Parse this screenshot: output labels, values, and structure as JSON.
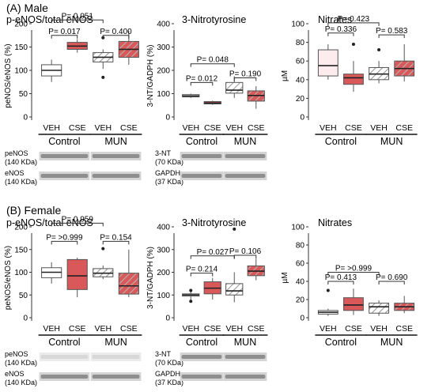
{
  "colors": {
    "red_fill": "#d9585a",
    "pale_fill": "#fdecee",
    "white_fill": "#ffffff",
    "hatch_line": "#9a9a9a",
    "axis": "#333333"
  },
  "chart_data": [
    {
      "panel_title": "(A) Male",
      "title": "p-eNOS/total eNOS",
      "type": "box",
      "ylabel": "peNOS/eNOS (%)",
      "ylim": [
        0,
        200
      ],
      "yticks": [
        0,
        50,
        100,
        150,
        200
      ],
      "categories": [
        "VEH",
        "CSE",
        "VEH",
        "CSE"
      ],
      "groups": [
        "Control",
        "MUN"
      ],
      "boxes": [
        {
          "style": "white",
          "whisker_low": 75,
          "q1": 88,
          "median": 100,
          "q3": 112,
          "whisker_high": 123,
          "outliers": []
        },
        {
          "style": "red",
          "whisker_low": 138,
          "q1": 145,
          "median": 152,
          "q3": 160,
          "whisker_high": 167,
          "outliers": []
        },
        {
          "style": "hatched",
          "whisker_low": 103,
          "q1": 118,
          "median": 128,
          "q3": 138,
          "whisker_high": 145,
          "outliers": [
            170,
            85
          ]
        },
        {
          "style": "hatched_red",
          "whisker_low": 112,
          "q1": 128,
          "median": 145,
          "q3": 162,
          "whisker_high": 185,
          "outliers": []
        }
      ],
      "pvalues": [
        {
          "text": "P= 0.051",
          "from": 0,
          "to": 2,
          "y": 208
        },
        {
          "text": "P= 0.017",
          "from": 0,
          "to": 1,
          "y": 175
        },
        {
          "text": "P= 0.400",
          "from": 2,
          "to": 3,
          "y": 175
        }
      ],
      "blots": [
        {
          "label": "peNOS",
          "sublabel": "(140 KDa)"
        },
        {
          "label": "eNOS",
          "sublabel": "(140 KDa)"
        }
      ]
    },
    {
      "title": "3-Nitrotyrosine",
      "type": "box",
      "ylabel": "3-NT/GADPH (%)",
      "ylim": [
        0,
        400
      ],
      "yticks": [
        0,
        100,
        200,
        300,
        400
      ],
      "categories": [
        "VEH",
        "CSE",
        "VEH",
        "CSE"
      ],
      "groups": [
        "Control",
        "MUN"
      ],
      "boxes": [
        {
          "style": "white",
          "whisker_low": 82,
          "q1": 86,
          "median": 90,
          "q3": 96,
          "whisker_high": 100,
          "outliers": []
        },
        {
          "style": "red",
          "whisker_low": 52,
          "q1": 56,
          "median": 60,
          "q3": 66,
          "whisker_high": 70,
          "outliers": []
        },
        {
          "style": "hatched",
          "whisker_low": 82,
          "q1": 102,
          "median": 115,
          "q3": 148,
          "whisker_high": 175,
          "outliers": []
        },
        {
          "style": "hatched_red",
          "whisker_low": 35,
          "q1": 68,
          "median": 92,
          "q3": 112,
          "whisker_high": 132,
          "outliers": []
        }
      ],
      "pvalues": [
        {
          "text": "P= 0.048",
          "from": 0,
          "to": 2,
          "y": 228
        },
        {
          "text": "P= 0.012",
          "from": 0,
          "to": 1,
          "y": 148
        },
        {
          "text": "P= 0.190",
          "from": 2,
          "to": 3,
          "y": 168
        }
      ],
      "blots": [
        {
          "label": "3-NT",
          "sublabel": "(70 KDa)"
        },
        {
          "label": "GAPDH",
          "sublabel": "(37 KDa)"
        }
      ]
    },
    {
      "title": "Nitrates",
      "type": "box",
      "ylabel": "µM",
      "ylim": [
        0,
        100
      ],
      "yticks": [
        0,
        20,
        40,
        60,
        80,
        100
      ],
      "categories": [
        "VEH",
        "CSE",
        "VEH",
        "CSE"
      ],
      "groups": [
        "Control",
        "MUN"
      ],
      "boxes": [
        {
          "style": "pale",
          "whisker_low": 40,
          "q1": 44,
          "median": 55,
          "q3": 72,
          "whisker_high": 78,
          "outliers": []
        },
        {
          "style": "red",
          "whisker_low": 27,
          "q1": 35,
          "median": 42,
          "q3": 46,
          "whisker_high": 60,
          "outliers": [
            78
          ]
        },
        {
          "style": "hatched",
          "whisker_low": 36,
          "q1": 40,
          "median": 46,
          "q3": 53,
          "whisker_high": 60,
          "outliers": [
            72
          ]
        },
        {
          "style": "hatched_red",
          "whisker_low": 38,
          "q1": 44,
          "median": 52,
          "q3": 60,
          "whisker_high": 78,
          "outliers": []
        }
      ],
      "pvalues": [
        {
          "text": "P= 0.423",
          "from": 0,
          "to": 2,
          "y": 101
        },
        {
          "text": "P= 0.336",
          "from": 0,
          "to": 1,
          "y": 90
        },
        {
          "text": "P= 0.583",
          "from": 2,
          "to": 3,
          "y": 88
        }
      ],
      "blots": []
    },
    {
      "panel_title": "(B) Female",
      "title": "p-eNOS/total eNOS",
      "type": "box",
      "ylabel": "peNOS/eNOS (%)",
      "ylim": [
        0,
        200
      ],
      "yticks": [
        0,
        50,
        100,
        150,
        200
      ],
      "categories": [
        "VEH",
        "CSE",
        "VEH",
        "CSE"
      ],
      "groups": [
        "Control",
        "MUN"
      ],
      "boxes": [
        {
          "style": "white",
          "whisker_low": 75,
          "q1": 88,
          "median": 100,
          "q3": 110,
          "whisker_high": 122,
          "outliers": []
        },
        {
          "style": "red",
          "whisker_low": 45,
          "q1": 62,
          "median": 92,
          "q3": 128,
          "whisker_high": 132,
          "outliers": []
        },
        {
          "style": "hatched",
          "whisker_low": 85,
          "q1": 90,
          "median": 98,
          "q3": 108,
          "whisker_high": 115,
          "outliers": [
            152
          ]
        },
        {
          "style": "hatched_red",
          "whisker_low": 45,
          "q1": 52,
          "median": 70,
          "q3": 98,
          "whisker_high": 150,
          "outliers": []
        }
      ],
      "pvalues": [
        {
          "text": "P= 0.959",
          "from": 0,
          "to": 2,
          "y": 208
        },
        {
          "text": "P= >0.999",
          "from": 0,
          "to": 1,
          "y": 168
        },
        {
          "text": "P= 0.154",
          "from": 2,
          "to": 3,
          "y": 168
        }
      ],
      "blots": [
        {
          "label": "peNOS",
          "sublabel": "(140 KDa)"
        },
        {
          "label": "eNOS",
          "sublabel": "(140 KDa)"
        }
      ]
    },
    {
      "title": "3-Nitrotyrosine",
      "type": "box",
      "ylabel": "3-NT/GADPH (%)",
      "ylim": [
        0,
        400
      ],
      "yticks": [
        0,
        100,
        200,
        300,
        400
      ],
      "categories": [
        "VEH",
        "CSE",
        "VEH",
        "CSE"
      ],
      "groups": [
        "Control",
        "MUN"
      ],
      "boxes": [
        {
          "style": "white",
          "whisker_low": 75,
          "q1": 95,
          "median": 100,
          "q3": 105,
          "whisker_high": 118,
          "outliers": [
            120,
            72
          ]
        },
        {
          "style": "red",
          "whisker_low": 80,
          "q1": 105,
          "median": 130,
          "q3": 158,
          "whisker_high": 175,
          "outliers": []
        },
        {
          "style": "hatched",
          "whisker_low": 68,
          "q1": 100,
          "median": 118,
          "q3": 150,
          "whisker_high": 200,
          "outliers": [
            390
          ]
        },
        {
          "style": "hatched_red",
          "whisker_low": 165,
          "q1": 185,
          "median": 205,
          "q3": 228,
          "whisker_high": 260,
          "outliers": []
        }
      ],
      "pvalues": [
        {
          "text": "P= 0.027",
          "from": 0,
          "to": 2,
          "y": 272
        },
        {
          "text": "P= 0.214",
          "from": 0,
          "to": 1,
          "y": 196
        },
        {
          "text": "P= 0.106",
          "from": 2,
          "to": 3,
          "y": 275
        }
      ],
      "blots": [
        {
          "label": "3-NT",
          "sublabel": "(70 KDa)"
        },
        {
          "label": "GAPDH",
          "sublabel": "(37 KDa)"
        }
      ]
    },
    {
      "title": "Nitrates",
      "type": "box",
      "ylabel": "µM",
      "ylim": [
        0,
        100
      ],
      "yticks": [
        0,
        20,
        40,
        60,
        80,
        100
      ],
      "categories": [
        "VEH",
        "CSE",
        "VEH",
        "CSE"
      ],
      "groups": [
        "Control",
        "MUN"
      ],
      "boxes": [
        {
          "style": "white",
          "whisker_low": 2,
          "q1": 4,
          "median": 6,
          "q3": 8,
          "whisker_high": 10,
          "outliers": [
            30
          ]
        },
        {
          "style": "red",
          "whisker_low": 3,
          "q1": 8,
          "median": 14,
          "q3": 22,
          "whisker_high": 32,
          "outliers": []
        },
        {
          "style": "hatched",
          "whisker_low": 2,
          "q1": 5,
          "median": 12,
          "q3": 16,
          "whisker_high": 19,
          "outliers": []
        },
        {
          "style": "hatched_red",
          "whisker_low": 5,
          "q1": 8,
          "median": 12,
          "q3": 16,
          "whisker_high": 24,
          "outliers": []
        }
      ],
      "pvalues": [
        {
          "text": "P= >0.999",
          "from": 0,
          "to": 2,
          "y": 50
        },
        {
          "text": "P= 0.413",
          "from": 0,
          "to": 1,
          "y": 40
        },
        {
          "text": "P= 0.690",
          "from": 2,
          "to": 3,
          "y": 40
        }
      ],
      "blots": []
    }
  ]
}
